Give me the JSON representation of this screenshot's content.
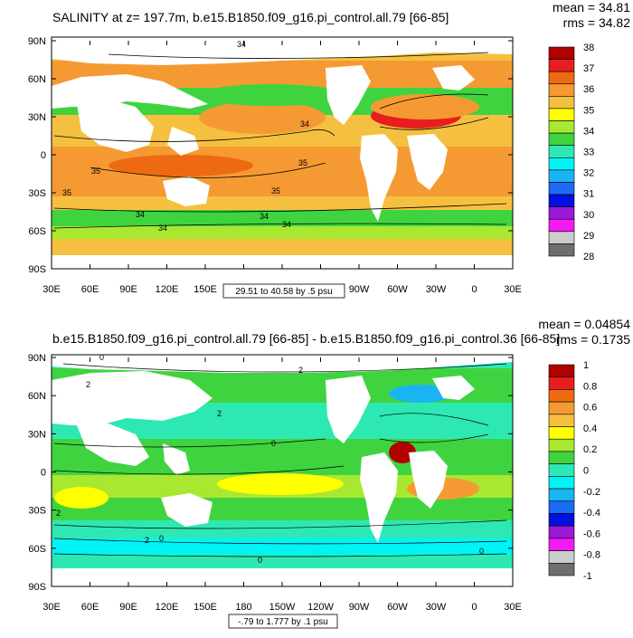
{
  "panel1": {
    "title": "SALINITY at z= 197.7m, b.e15.B1850.f09_g16.pi_control.all.79 [66-85]",
    "mean": "mean = 34.81",
    "rms": "rms = 34.82",
    "range_label": "29.51 to 40.58 by .5 psu",
    "lat_labels": [
      "90N",
      "60N",
      "30N",
      "0",
      "30S",
      "60S",
      "90S"
    ],
    "lon_labels": [
      "30E",
      "60E",
      "90E",
      "120E",
      "150E",
      "180",
      "150W",
      "120W",
      "90W",
      "60W",
      "30W",
      "0",
      "30E"
    ],
    "contour_labels": [
      "34",
      "34",
      "35",
      "35",
      "35",
      "35",
      "34",
      "34",
      "34",
      "34"
    ],
    "colorbar": {
      "labels": [
        "38",
        "37",
        "36",
        "35",
        "34",
        "33",
        "32",
        "31",
        "30",
        "29",
        "28"
      ],
      "colors": [
        "#b00000",
        "#e81e1e",
        "#ee6a12",
        "#f59a32",
        "#f5c040",
        "#ffff00",
        "#a8e830",
        "#3fd43f",
        "#2ee8b4",
        "#00f4f4",
        "#1ab4f4",
        "#1a6af4",
        "#0010e0",
        "#9a1ad6",
        "#f41af4",
        "#cccccc",
        "#6e6e6e"
      ]
    }
  },
  "panel2": {
    "title": "b.e15.B1850.f09_g16.pi_control.all.79 [66-85] - b.e15.B1850.f09_g16.pi_control.36 [66-85]",
    "mean": "mean = 0.04854",
    "rms": "rms = 0.1735",
    "range_label": "-.79 to 1.777 by .1 psu",
    "lat_labels": [
      "90N",
      "60N",
      "30N",
      "0",
      "30S",
      "60S",
      "90S"
    ],
    "lon_labels": [
      "30E",
      "60E",
      "90E",
      "120E",
      "150E",
      "180",
      "150W",
      "120W",
      "90W",
      "60W",
      "30W",
      "0",
      "30E"
    ],
    "contour_labels": [
      "2",
      "0",
      "2",
      "2",
      "2",
      "0",
      "0",
      "2",
      "0",
      "0"
    ],
    "colorbar": {
      "labels": [
        "1",
        "0.8",
        "0.6",
        "0.4",
        "0.2",
        "0",
        "-0.2",
        "-0.4",
        "-0.6",
        "-0.8",
        "-1"
      ],
      "colors": [
        "#b00000",
        "#e81e1e",
        "#ee6a12",
        "#f59a32",
        "#f5c040",
        "#ffff00",
        "#a8e830",
        "#3fd43f",
        "#2ee8b4",
        "#00f4f4",
        "#1ab4f4",
        "#1a6af4",
        "#0010e0",
        "#9a1ad6",
        "#f41af4",
        "#cccccc",
        "#6e6e6e"
      ]
    }
  }
}
